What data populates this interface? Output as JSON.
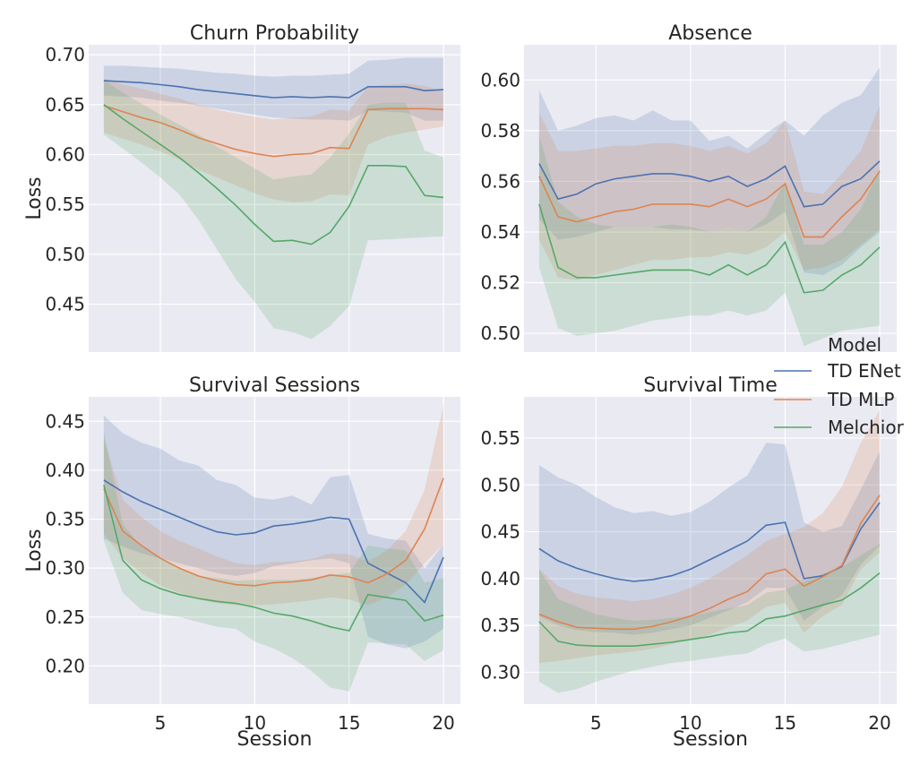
{
  "figure": {
    "xlabel": "Session",
    "ylabel": "Loss",
    "legend": {
      "title": "Model",
      "placement": "right-middle",
      "entries": [
        "TD ENet",
        "TD MLP",
        "Melchior"
      ]
    },
    "colors": {
      "TD ENet": "#4c72b0",
      "TD MLP": "#dd8452",
      "Melchior": "#55a868",
      "panel_bg": "#eaeaf2",
      "grid": "#ffffff"
    },
    "xticks": [
      5,
      10,
      15,
      20
    ]
  },
  "chart_data": [
    {
      "type": "line",
      "title": "Churn Probability",
      "xlabel": "",
      "ylabel": "Loss",
      "xlim": [
        1.2,
        20.9
      ],
      "ylim": [
        0.402,
        0.71
      ],
      "yticks": [
        "0.45",
        "0.50",
        "0.55",
        "0.60",
        "0.65",
        "0.70"
      ],
      "grid": true,
      "x": [
        2,
        3,
        4,
        5,
        6,
        7,
        8,
        9,
        10,
        11,
        12,
        13,
        14,
        15,
        16,
        17,
        18,
        19,
        20
      ],
      "series": [
        {
          "name": "TD ENet",
          "values": [
            0.674,
            0.673,
            0.672,
            0.67,
            0.668,
            0.665,
            0.663,
            0.661,
            0.659,
            0.657,
            0.658,
            0.657,
            0.658,
            0.657,
            0.668,
            0.668,
            0.668,
            0.664,
            0.665
          ],
          "lower": [
            0.659,
            0.658,
            0.657,
            0.654,
            0.652,
            0.649,
            0.646,
            0.643,
            0.64,
            0.637,
            0.636,
            0.635,
            0.635,
            0.634,
            0.644,
            0.643,
            0.642,
            0.634,
            0.634
          ],
          "upper": [
            0.689,
            0.689,
            0.688,
            0.687,
            0.686,
            0.684,
            0.682,
            0.681,
            0.679,
            0.678,
            0.679,
            0.679,
            0.68,
            0.681,
            0.694,
            0.695,
            0.697,
            0.697,
            0.697
          ]
        },
        {
          "name": "TD MLP",
          "values": [
            0.649,
            0.643,
            0.637,
            0.632,
            0.625,
            0.617,
            0.611,
            0.605,
            0.601,
            0.598,
            0.6,
            0.601,
            0.607,
            0.606,
            0.645,
            0.646,
            0.646,
            0.646,
            0.645
          ],
          "lower": [
            0.622,
            0.616,
            0.61,
            0.603,
            0.595,
            0.585,
            0.577,
            0.569,
            0.561,
            0.555,
            0.552,
            0.553,
            0.56,
            0.559,
            0.61,
            0.618,
            0.622,
            0.625,
            0.628
          ],
          "upper": [
            0.676,
            0.67,
            0.666,
            0.661,
            0.656,
            0.65,
            0.645,
            0.641,
            0.638,
            0.635,
            0.637,
            0.638,
            0.645,
            0.644,
            0.668,
            0.67,
            0.671,
            0.669,
            0.663
          ]
        },
        {
          "name": "Melchior",
          "values": [
            0.65,
            0.636,
            0.623,
            0.61,
            0.597,
            0.582,
            0.566,
            0.549,
            0.53,
            0.513,
            0.514,
            0.51,
            0.522,
            0.548,
            0.589,
            0.589,
            0.588,
            0.559,
            0.557
          ],
          "lower": [
            0.62,
            0.606,
            0.592,
            0.577,
            0.56,
            0.535,
            0.505,
            0.475,
            0.452,
            0.426,
            0.422,
            0.415,
            0.428,
            0.448,
            0.514,
            0.515,
            0.516,
            0.517,
            0.518
          ],
          "upper": [
            0.675,
            0.662,
            0.651,
            0.64,
            0.63,
            0.62,
            0.608,
            0.597,
            0.586,
            0.575,
            0.578,
            0.58,
            0.597,
            0.621,
            0.65,
            0.652,
            0.652,
            0.604,
            0.597
          ]
        }
      ]
    },
    {
      "type": "line",
      "title": "Absence",
      "xlabel": "",
      "ylabel": "",
      "xlim": [
        1.2,
        20.9
      ],
      "ylim": [
        0.4926,
        0.6139
      ],
      "yticks": [
        "0.50",
        "0.52",
        "0.54",
        "0.56",
        "0.58",
        "0.60"
      ],
      "grid": true,
      "x": [
        2,
        3,
        4,
        5,
        6,
        7,
        8,
        9,
        10,
        11,
        12,
        13,
        14,
        15,
        16,
        17,
        18,
        19,
        20
      ],
      "series": [
        {
          "name": "TD ENet",
          "values": [
            0.567,
            0.553,
            0.555,
            0.559,
            0.561,
            0.562,
            0.563,
            0.563,
            0.562,
            0.56,
            0.562,
            0.558,
            0.561,
            0.566,
            0.55,
            0.551,
            0.558,
            0.561,
            0.568
          ],
          "lower": [
            0.545,
            0.537,
            0.538,
            0.54,
            0.542,
            0.542,
            0.542,
            0.541,
            0.541,
            0.54,
            0.542,
            0.54,
            0.543,
            0.548,
            0.524,
            0.523,
            0.527,
            0.534,
            0.54
          ],
          "upper": [
            0.596,
            0.58,
            0.582,
            0.585,
            0.586,
            0.584,
            0.588,
            0.584,
            0.584,
            0.576,
            0.578,
            0.573,
            0.579,
            0.584,
            0.578,
            0.586,
            0.591,
            0.594,
            0.605
          ]
        },
        {
          "name": "TD MLP",
          "values": [
            0.562,
            0.546,
            0.544,
            0.546,
            0.548,
            0.549,
            0.551,
            0.551,
            0.551,
            0.55,
            0.553,
            0.55,
            0.553,
            0.559,
            0.538,
            0.538,
            0.546,
            0.553,
            0.564
          ],
          "lower": [
            0.537,
            0.522,
            0.521,
            0.523,
            0.525,
            0.527,
            0.529,
            0.529,
            0.53,
            0.53,
            0.532,
            0.531,
            0.534,
            0.54,
            0.525,
            0.526,
            0.529,
            0.535,
            0.541
          ],
          "upper": [
            0.587,
            0.572,
            0.572,
            0.573,
            0.574,
            0.574,
            0.575,
            0.575,
            0.574,
            0.572,
            0.574,
            0.571,
            0.575,
            0.584,
            0.556,
            0.555,
            0.563,
            0.572,
            0.59
          ]
        },
        {
          "name": "Melchior",
          "values": [
            0.551,
            0.526,
            0.522,
            0.522,
            0.523,
            0.524,
            0.525,
            0.525,
            0.525,
            0.523,
            0.527,
            0.523,
            0.527,
            0.536,
            0.516,
            0.517,
            0.523,
            0.527,
            0.534
          ],
          "lower": [
            0.526,
            0.502,
            0.499,
            0.5,
            0.501,
            0.503,
            0.505,
            0.506,
            0.507,
            0.507,
            0.509,
            0.507,
            0.509,
            0.516,
            0.495,
            0.498,
            0.501,
            0.502,
            0.503
          ],
          "upper": [
            0.578,
            0.552,
            0.546,
            0.543,
            0.542,
            0.542,
            0.542,
            0.543,
            0.542,
            0.54,
            0.542,
            0.54,
            0.546,
            0.56,
            0.535,
            0.535,
            0.54,
            0.549,
            0.565
          ]
        }
      ]
    },
    {
      "type": "line",
      "title": "Survival Sessions",
      "xlabel": "Session",
      "ylabel": "Loss",
      "xlim": [
        1.2,
        20.9
      ],
      "ylim": [
        0.161,
        0.475
      ],
      "yticks": [
        "0.20",
        "0.25",
        "0.30",
        "0.35",
        "0.40",
        "0.45"
      ],
      "grid": true,
      "x": [
        2,
        3,
        4,
        5,
        6,
        7,
        8,
        9,
        10,
        11,
        12,
        13,
        14,
        15,
        16,
        17,
        18,
        19,
        20
      ],
      "series": [
        {
          "name": "TD ENet",
          "values": [
            0.39,
            0.378,
            0.368,
            0.36,
            0.352,
            0.344,
            0.337,
            0.334,
            0.336,
            0.343,
            0.345,
            0.348,
            0.352,
            0.35,
            0.305,
            0.295,
            0.285,
            0.265,
            0.311
          ],
          "lower": [
            0.33,
            0.322,
            0.315,
            0.31,
            0.305,
            0.3,
            0.295,
            0.292,
            0.295,
            0.302,
            0.305,
            0.308,
            0.31,
            0.305,
            0.23,
            0.222,
            0.218,
            0.225,
            0.238
          ],
          "upper": [
            0.456,
            0.438,
            0.428,
            0.422,
            0.41,
            0.405,
            0.39,
            0.385,
            0.372,
            0.37,
            0.374,
            0.365,
            0.393,
            0.395,
            0.335,
            0.33,
            0.328,
            0.3,
            0.324
          ]
        },
        {
          "name": "TD MLP",
          "values": [
            0.381,
            0.338,
            0.323,
            0.31,
            0.3,
            0.292,
            0.287,
            0.283,
            0.282,
            0.285,
            0.286,
            0.288,
            0.293,
            0.291,
            0.285,
            0.294,
            0.308,
            0.34,
            0.392
          ],
          "lower": [
            0.335,
            0.31,
            0.295,
            0.282,
            0.275,
            0.268,
            0.264,
            0.262,
            0.262,
            0.263,
            0.265,
            0.267,
            0.27,
            0.268,
            0.262,
            0.27,
            0.283,
            0.305,
            0.324
          ],
          "upper": [
            0.432,
            0.37,
            0.352,
            0.338,
            0.328,
            0.32,
            0.312,
            0.305,
            0.303,
            0.306,
            0.307,
            0.309,
            0.315,
            0.314,
            0.307,
            0.318,
            0.338,
            0.38,
            0.467
          ]
        },
        {
          "name": "Melchior",
          "values": [
            0.385,
            0.308,
            0.288,
            0.279,
            0.273,
            0.269,
            0.266,
            0.264,
            0.26,
            0.254,
            0.251,
            0.246,
            0.24,
            0.236,
            0.273,
            0.27,
            0.267,
            0.246,
            0.252
          ],
          "lower": [
            0.328,
            0.275,
            0.257,
            0.253,
            0.25,
            0.245,
            0.24,
            0.238,
            0.225,
            0.218,
            0.208,
            0.195,
            0.178,
            0.174,
            0.224,
            0.223,
            0.222,
            0.205,
            0.216
          ],
          "upper": [
            0.44,
            0.345,
            0.322,
            0.31,
            0.3,
            0.292,
            0.29,
            0.287,
            0.288,
            0.288,
            0.288,
            0.29,
            0.293,
            0.295,
            0.323,
            0.32,
            0.318,
            0.285,
            0.29
          ]
        }
      ]
    },
    {
      "type": "line",
      "title": "Survival Time",
      "xlabel": "Session",
      "ylabel": "",
      "xlim": [
        1.2,
        20.9
      ],
      "ylim": [
        0.266,
        0.594
      ],
      "yticks": [
        "0.30",
        "0.35",
        "0.40",
        "0.45",
        "0.50",
        "0.55"
      ],
      "grid": true,
      "x": [
        2,
        3,
        4,
        5,
        6,
        7,
        8,
        9,
        10,
        11,
        12,
        13,
        14,
        15,
        16,
        17,
        18,
        19,
        20
      ],
      "series": [
        {
          "name": "TD ENet",
          "values": [
            0.432,
            0.419,
            0.411,
            0.405,
            0.4,
            0.397,
            0.399,
            0.403,
            0.41,
            0.42,
            0.43,
            0.44,
            0.457,
            0.46,
            0.4,
            0.403,
            0.413,
            0.453,
            0.481
          ],
          "lower": [
            0.36,
            0.35,
            0.345,
            0.343,
            0.342,
            0.34,
            0.342,
            0.346,
            0.35,
            0.358,
            0.366,
            0.375,
            0.39,
            0.39,
            0.355,
            0.37,
            0.382,
            0.415,
            0.435
          ],
          "upper": [
            0.521,
            0.508,
            0.5,
            0.487,
            0.476,
            0.47,
            0.472,
            0.467,
            0.471,
            0.482,
            0.497,
            0.51,
            0.545,
            0.543,
            0.46,
            0.45,
            0.456,
            0.495,
            0.536
          ]
        },
        {
          "name": "TD MLP",
          "values": [
            0.362,
            0.354,
            0.348,
            0.347,
            0.346,
            0.346,
            0.349,
            0.354,
            0.36,
            0.368,
            0.378,
            0.386,
            0.405,
            0.41,
            0.392,
            0.402,
            0.414,
            0.459,
            0.489
          ],
          "lower": [
            0.31,
            0.312,
            0.315,
            0.318,
            0.32,
            0.322,
            0.325,
            0.33,
            0.335,
            0.34,
            0.348,
            0.355,
            0.37,
            0.374,
            0.342,
            0.36,
            0.372,
            0.41,
            0.428
          ],
          "upper": [
            0.41,
            0.392,
            0.384,
            0.38,
            0.378,
            0.376,
            0.378,
            0.383,
            0.39,
            0.4,
            0.412,
            0.425,
            0.44,
            0.448,
            0.455,
            0.47,
            0.498,
            0.545,
            0.58
          ]
        },
        {
          "name": "Melchior",
          "values": [
            0.354,
            0.333,
            0.329,
            0.328,
            0.328,
            0.328,
            0.33,
            0.332,
            0.335,
            0.338,
            0.342,
            0.344,
            0.357,
            0.36,
            0.366,
            0.372,
            0.377,
            0.39,
            0.406
          ],
          "lower": [
            0.29,
            0.278,
            0.282,
            0.29,
            0.296,
            0.302,
            0.306,
            0.31,
            0.312,
            0.315,
            0.318,
            0.32,
            0.33,
            0.336,
            0.322,
            0.325,
            0.33,
            0.335,
            0.34
          ],
          "upper": [
            0.41,
            0.378,
            0.37,
            0.362,
            0.358,
            0.355,
            0.356,
            0.358,
            0.36,
            0.364,
            0.368,
            0.372,
            0.385,
            0.388,
            0.397,
            0.405,
            0.412,
            0.425,
            0.437
          ]
        }
      ]
    }
  ]
}
